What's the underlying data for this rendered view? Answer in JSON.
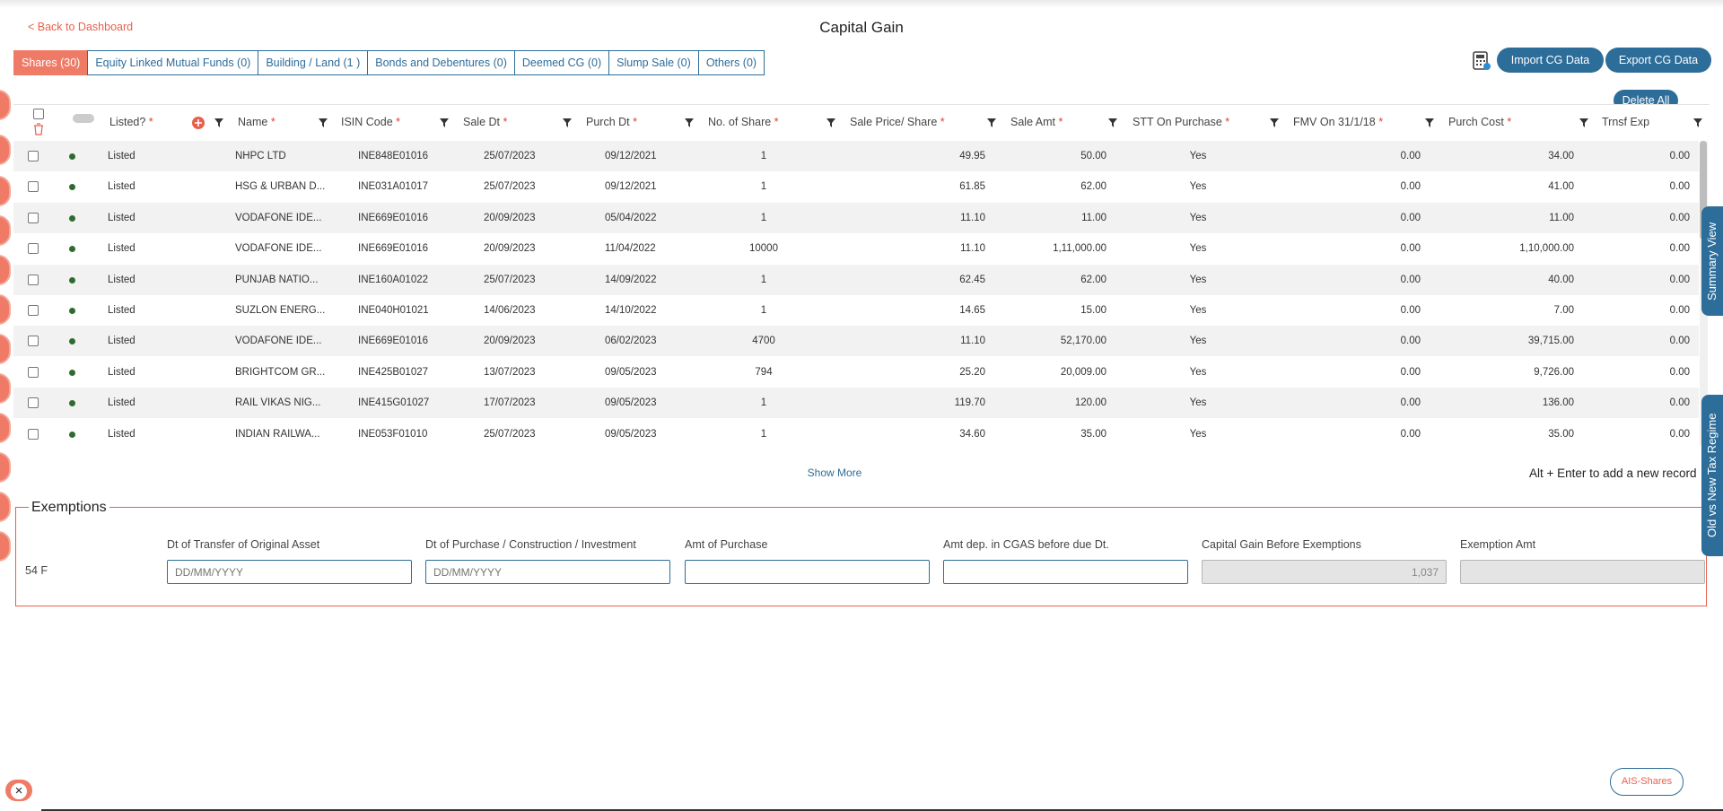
{
  "nav": {
    "back_label": "< Back to Dashboard"
  },
  "page": {
    "title": "Capital Gain"
  },
  "tabs": [
    {
      "label": "Shares (30)",
      "active": true
    },
    {
      "label": "Equity Linked Mutual Funds (0)",
      "active": false
    },
    {
      "label": "Building / Land (1 )",
      "active": false
    },
    {
      "label": "Bonds and Debentures (0)",
      "active": false
    },
    {
      "label": "Deemed CG (0)",
      "active": false
    },
    {
      "label": "Slump Sale (0)",
      "active": false
    },
    {
      "label": "Others (0)",
      "active": false
    }
  ],
  "toolbar": {
    "import_label": "Import CG Data",
    "export_label": "Export CG Data",
    "delete_all_label": "Delete All",
    "calculator_icon": "calculator-icon"
  },
  "table": {
    "columns": [
      {
        "label": "Listed?",
        "required": true
      },
      {
        "label": "Name",
        "required": true
      },
      {
        "label": "ISIN Code",
        "required": true
      },
      {
        "label": "Sale Dt",
        "required": true
      },
      {
        "label": "Purch Dt",
        "required": true
      },
      {
        "label": "No. of Share",
        "required": true
      },
      {
        "label": "Sale Price/ Share",
        "required": true
      },
      {
        "label": "Sale Amt",
        "required": true
      },
      {
        "label": "STT On Purchase",
        "required": true
      },
      {
        "label": "FMV On 31/1/18",
        "required": true
      },
      {
        "label": "Purch Cost",
        "required": true
      },
      {
        "label": "Trnsf Exp",
        "required": false
      }
    ],
    "rows": [
      {
        "listed": "Listed",
        "name": "NHPC LTD",
        "isin": "INE848E01016",
        "sale_dt": "25/07/2023",
        "purch_dt": "09/12/2021",
        "shares": "1",
        "sale_price": "49.95",
        "sale_amt": "50.00",
        "stt": "Yes",
        "fmv": "0.00",
        "purch_cost": "34.00",
        "trnsf": "0.00"
      },
      {
        "listed": "Listed",
        "name": "HSG & URBAN D...",
        "isin": "INE031A01017",
        "sale_dt": "25/07/2023",
        "purch_dt": "09/12/2021",
        "shares": "1",
        "sale_price": "61.85",
        "sale_amt": "62.00",
        "stt": "Yes",
        "fmv": "0.00",
        "purch_cost": "41.00",
        "trnsf": "0.00"
      },
      {
        "listed": "Listed",
        "name": "VODAFONE IDE...",
        "isin": "INE669E01016",
        "sale_dt": "20/09/2023",
        "purch_dt": "05/04/2022",
        "shares": "1",
        "sale_price": "11.10",
        "sale_amt": "11.00",
        "stt": "Yes",
        "fmv": "0.00",
        "purch_cost": "11.00",
        "trnsf": "0.00"
      },
      {
        "listed": "Listed",
        "name": "VODAFONE IDE...",
        "isin": "INE669E01016",
        "sale_dt": "20/09/2023",
        "purch_dt": "11/04/2022",
        "shares": "10000",
        "sale_price": "11.10",
        "sale_amt": "1,11,000.00",
        "stt": "Yes",
        "fmv": "0.00",
        "purch_cost": "1,10,000.00",
        "trnsf": "0.00"
      },
      {
        "listed": "Listed",
        "name": "PUNJAB NATIO...",
        "isin": "INE160A01022",
        "sale_dt": "25/07/2023",
        "purch_dt": "14/09/2022",
        "shares": "1",
        "sale_price": "62.45",
        "sale_amt": "62.00",
        "stt": "Yes",
        "fmv": "0.00",
        "purch_cost": "40.00",
        "trnsf": "0.00"
      },
      {
        "listed": "Listed",
        "name": "SUZLON ENERG...",
        "isin": "INE040H01021",
        "sale_dt": "14/06/2023",
        "purch_dt": "14/10/2022",
        "shares": "1",
        "sale_price": "14.65",
        "sale_amt": "15.00",
        "stt": "Yes",
        "fmv": "0.00",
        "purch_cost": "7.00",
        "trnsf": "0.00"
      },
      {
        "listed": "Listed",
        "name": "VODAFONE IDE...",
        "isin": "INE669E01016",
        "sale_dt": "20/09/2023",
        "purch_dt": "06/02/2023",
        "shares": "4700",
        "sale_price": "11.10",
        "sale_amt": "52,170.00",
        "stt": "Yes",
        "fmv": "0.00",
        "purch_cost": "39,715.00",
        "trnsf": "0.00"
      },
      {
        "listed": "Listed",
        "name": "BRIGHTCOM GR...",
        "isin": "INE425B01027",
        "sale_dt": "13/07/2023",
        "purch_dt": "09/05/2023",
        "shares": "794",
        "sale_price": "25.20",
        "sale_amt": "20,009.00",
        "stt": "Yes",
        "fmv": "0.00",
        "purch_cost": "9,726.00",
        "trnsf": "0.00"
      },
      {
        "listed": "Listed",
        "name": "RAIL VIKAS NIG...",
        "isin": "INE415G01027",
        "sale_dt": "17/07/2023",
        "purch_dt": "09/05/2023",
        "shares": "1",
        "sale_price": "119.70",
        "sale_amt": "120.00",
        "stt": "Yes",
        "fmv": "0.00",
        "purch_cost": "136.00",
        "trnsf": "0.00"
      },
      {
        "listed": "Listed",
        "name": "INDIAN RAILWA...",
        "isin": "INE053F01010",
        "sale_dt": "25/07/2023",
        "purch_dt": "09/05/2023",
        "shares": "1",
        "sale_price": "34.60",
        "sale_amt": "35.00",
        "stt": "Yes",
        "fmv": "0.00",
        "purch_cost": "35.00",
        "trnsf": "0.00"
      }
    ],
    "show_more_label": "Show More",
    "hint": "Alt + Enter to add a new record"
  },
  "exemptions": {
    "title": "Exemptions",
    "row_label": "54 F",
    "fields": [
      {
        "label": "Dt of Transfer of Original Asset",
        "value": "",
        "placeholder": "DD/MM/YYYY"
      },
      {
        "label": "Dt of Purchase / Construction / Investment",
        "value": "",
        "placeholder": "DD/MM/YYYY"
      },
      {
        "label": "Amt of Purchase",
        "value": "",
        "placeholder": ""
      },
      {
        "label": "Amt dep. in CGAS before due Dt.",
        "value": "",
        "placeholder": ""
      },
      {
        "label": "Capital Gain Before Exemptions",
        "value": "1,037",
        "placeholder": ""
      },
      {
        "label": "Exemption Amt",
        "value": "",
        "placeholder": ""
      }
    ]
  },
  "side_panels": {
    "summary_label": "Summary View",
    "regime_label": "Old vs New Tax Regime"
  },
  "footer": {
    "ais_label": "AIS-Shares"
  },
  "colors": {
    "accent": "#ef7a66",
    "primary": "#2d6d99",
    "required": "#e0412c",
    "listed_dot": "#2f6b2f"
  }
}
